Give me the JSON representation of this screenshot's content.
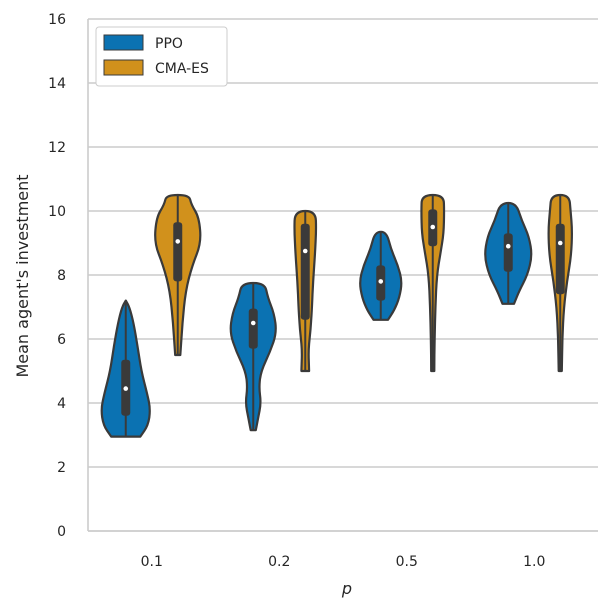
{
  "colors": {
    "PPO": "#0b72b2",
    "CMA-ES": "#d1911c",
    "grid": "#cccccc",
    "outline": "#3a3a3a",
    "background": "#ffffff"
  },
  "chart_data": {
    "type": "violin",
    "xlabel": "p",
    "ylabel": "Mean agent's investment",
    "ylim": [
      0,
      16
    ],
    "yticks": [
      0,
      2,
      4,
      6,
      8,
      10,
      12,
      14,
      16
    ],
    "categories": [
      "0.1",
      "0.2",
      "0.5",
      "1.0"
    ],
    "grid": "horizontal",
    "legend": {
      "placement": "top-left",
      "entries": [
        "PPO",
        "CMA-ES"
      ]
    },
    "series": [
      {
        "name": "PPO",
        "violins": [
          {
            "min": 2.95,
            "q1": 3.6,
            "median": 4.45,
            "q3": 5.35,
            "max": 7.2,
            "profile": [
              [
                2.95,
                0.56
              ],
              [
                3.3,
                0.86
              ],
              [
                3.8,
                0.95
              ],
              [
                4.3,
                0.82
              ],
              [
                5.0,
                0.6
              ],
              [
                5.8,
                0.45
              ],
              [
                6.5,
                0.3
              ],
              [
                7.0,
                0.14
              ],
              [
                7.2,
                0.0
              ]
            ]
          },
          {
            "min": 3.15,
            "q1": 5.7,
            "median": 6.5,
            "q3": 6.95,
            "max": 7.75,
            "profile": [
              [
                3.15,
                0.1
              ],
              [
                3.5,
                0.18
              ],
              [
                4.0,
                0.3
              ],
              [
                4.5,
                0.22
              ],
              [
                5.0,
                0.3
              ],
              [
                5.6,
                0.65
              ],
              [
                6.2,
                0.9
              ],
              [
                6.8,
                0.8
              ],
              [
                7.3,
                0.56
              ],
              [
                7.75,
                0.44
              ]
            ]
          },
          {
            "min": 6.6,
            "q1": 7.2,
            "median": 7.8,
            "q3": 8.3,
            "max": 9.35,
            "profile": [
              [
                6.6,
                0.28
              ],
              [
                6.9,
                0.52
              ],
              [
                7.3,
                0.72
              ],
              [
                7.8,
                0.82
              ],
              [
                8.3,
                0.66
              ],
              [
                8.8,
                0.4
              ],
              [
                9.35,
                0.22
              ]
            ]
          },
          {
            "min": 7.1,
            "q1": 8.1,
            "median": 8.9,
            "q3": 9.3,
            "max": 10.25,
            "profile": [
              [
                7.1,
                0.22
              ],
              [
                7.5,
                0.42
              ],
              [
                8.0,
                0.74
              ],
              [
                8.6,
                0.92
              ],
              [
                9.2,
                0.8
              ],
              [
                9.7,
                0.52
              ],
              [
                10.25,
                0.3
              ]
            ]
          }
        ]
      },
      {
        "name": "CMA-ES",
        "violins": [
          {
            "min": 5.5,
            "q1": 7.8,
            "median": 9.05,
            "q3": 9.65,
            "max": 10.5,
            "profile": [
              [
                5.5,
                0.1
              ],
              [
                6.5,
                0.18
              ],
              [
                7.5,
                0.3
              ],
              [
                8.3,
                0.56
              ],
              [
                9.0,
                0.9
              ],
              [
                9.8,
                0.82
              ],
              [
                10.2,
                0.52
              ],
              [
                10.5,
                0.44
              ]
            ]
          },
          {
            "min": 5.0,
            "q1": 6.6,
            "median": 8.75,
            "q3": 9.6,
            "max": 10.0,
            "profile": [
              [
                5.0,
                0.15
              ],
              [
                5.6,
                0.12
              ],
              [
                6.1,
                0.18
              ],
              [
                6.5,
                0.22
              ],
              [
                7.0,
                0.26
              ],
              [
                7.8,
                0.3
              ],
              [
                8.7,
                0.38
              ],
              [
                9.4,
                0.42
              ],
              [
                10.0,
                0.4
              ]
            ]
          },
          {
            "min": 5.0,
            "q1": 8.9,
            "median": 9.5,
            "q3": 10.05,
            "max": 10.5,
            "profile": [
              [
                5.0,
                0.06
              ],
              [
                6.0,
                0.07
              ],
              [
                7.0,
                0.1
              ],
              [
                8.0,
                0.16
              ],
              [
                8.7,
                0.3
              ],
              [
                9.3,
                0.42
              ],
              [
                10.0,
                0.44
              ],
              [
                10.5,
                0.42
              ]
            ]
          },
          {
            "min": 5.0,
            "q1": 7.4,
            "median": 9.0,
            "q3": 9.6,
            "max": 10.5,
            "profile": [
              [
                5.0,
                0.06
              ],
              [
                6.0,
                0.08
              ],
              [
                7.0,
                0.14
              ],
              [
                7.8,
                0.26
              ],
              [
                8.6,
                0.42
              ],
              [
                9.4,
                0.46
              ],
              [
                10.0,
                0.4
              ],
              [
                10.5,
                0.34
              ]
            ]
          }
        ]
      }
    ]
  }
}
